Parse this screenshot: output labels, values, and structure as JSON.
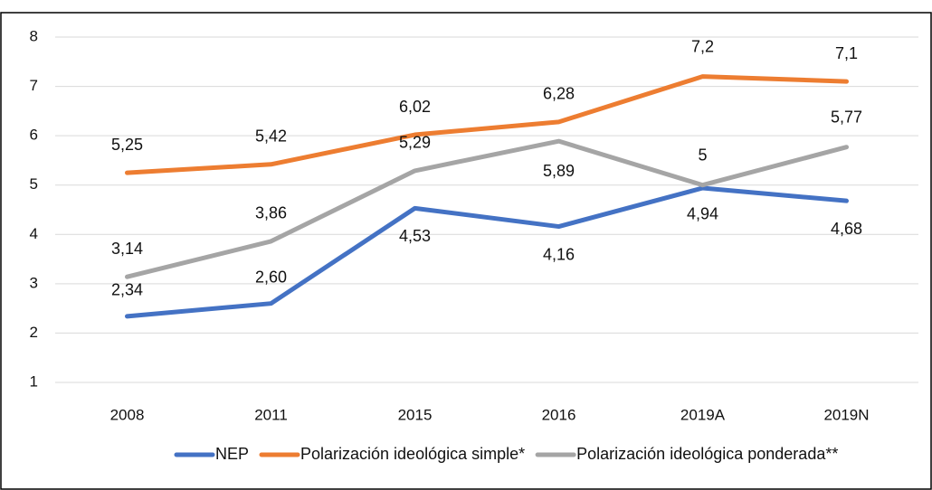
{
  "chart_data": {
    "type": "line",
    "categories": [
      "2008",
      "2011",
      "2015",
      "2016",
      "2019A",
      "2019N"
    ],
    "series": [
      {
        "name": "NEP",
        "color": "#4472c4",
        "values": [
          2.34,
          2.6,
          4.53,
          4.16,
          4.94,
          4.68
        ],
        "value_labels": [
          "2,34",
          "2,60",
          "4,53",
          "4,16",
          "4,94",
          "4,68"
        ]
      },
      {
        "name": "Polarización ideológica simple*",
        "color": "#ed7d31",
        "values": [
          5.25,
          5.42,
          6.02,
          6.28,
          7.2,
          7.1
        ],
        "value_labels": [
          "5,25",
          "5,42",
          "6,02",
          "6,28",
          "7,2",
          "7,1"
        ]
      },
      {
        "name": "Polarización ideológica ponderada**",
        "color": "#a5a5a5",
        "values": [
          3.14,
          3.86,
          5.29,
          5.89,
          5,
          5.77
        ],
        "value_labels": [
          "3,14",
          "3,86",
          "5,29",
          "5,89",
          "5",
          "5,77"
        ]
      }
    ],
    "ylim": [
      1,
      8
    ],
    "yticks": [
      1,
      2,
      3,
      4,
      5,
      6,
      7,
      8
    ],
    "grid": true,
    "legend": "bottom"
  }
}
